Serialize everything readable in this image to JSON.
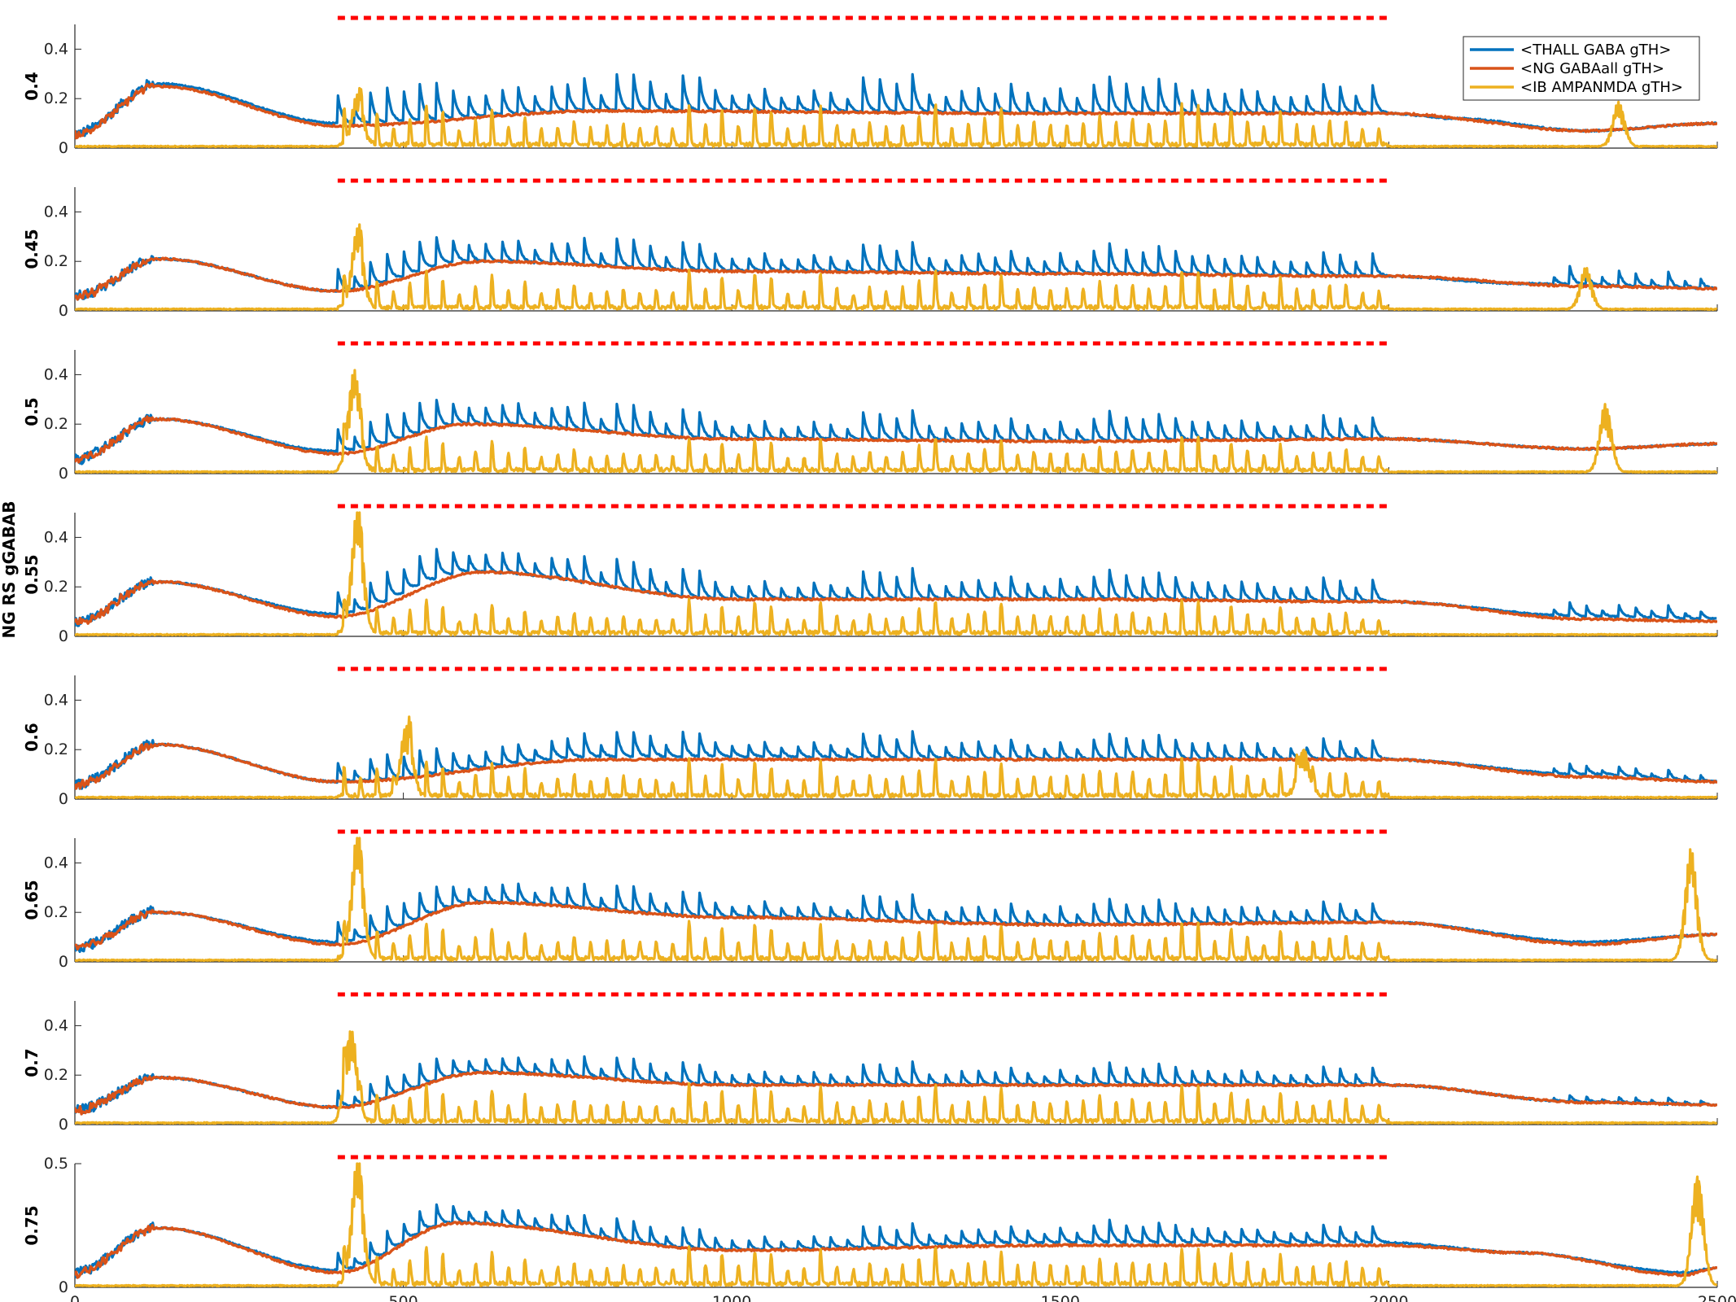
{
  "chart_data": {
    "type": "line",
    "ylabel": "NG RS gGABAB",
    "xlim": [
      0,
      2500
    ],
    "x_ticks": [
      "0",
      "500",
      "1000",
      "1500",
      "2000",
      "2500"
    ],
    "stimulus_marker": {
      "start": 400,
      "end": 2000,
      "color": "#FF0000"
    },
    "legend": {
      "placement": "top-right",
      "entries": [
        "<THALL GABA gTH>",
        "<NG GABAall gTH>",
        "<IB AMPANMDA gTH>"
      ]
    },
    "colors": [
      "#0072BD",
      "#D95319",
      "#EDB120"
    ],
    "panels": [
      {
        "label": "0.4",
        "ylim": [
          0,
          0.5
        ],
        "yticks": [
          "0",
          "0.2",
          "0.4"
        ],
        "series": [
          {
            "name": "<THALL GABA gTH>",
            "base": [
              [
                0,
                0.05
              ],
              [
                130,
                0.26
              ],
              [
                400,
                0.1
              ],
              [
                800,
                0.15
              ],
              [
                1000,
                0.15
              ],
              [
                1500,
                0.14
              ],
              [
                2000,
                0.14
              ],
              [
                2100,
                0.12
              ],
              [
                2300,
                0.07
              ],
              [
                2500,
                0.1
              ]
            ],
            "spike_amp": 0.1,
            "spike_period": 25,
            "after_end_amp": 0.0
          },
          {
            "name": "<NG GABAall gTH>",
            "base": [
              [
                0,
                0.05
              ],
              [
                130,
                0.25
              ],
              [
                400,
                0.09
              ],
              [
                800,
                0.15
              ],
              [
                1500,
                0.14
              ],
              [
                2000,
                0.14
              ],
              [
                2300,
                0.07
              ],
              [
                2500,
                0.1
              ]
            ]
          },
          {
            "name": "<IB AMPANMDA gTH>",
            "burst_peaks": [
              {
                "x": 430,
                "y": 0.2
              },
              {
                "x": 2350,
                "y": 0.18
              }
            ],
            "spike_amp": 0.11,
            "spike_period": 25
          }
        ]
      },
      {
        "label": "0.45",
        "ylim": [
          0,
          0.5
        ],
        "yticks": [
          "0",
          "0.2",
          "0.4"
        ],
        "series": [
          {
            "name": "<THALL GABA gTH>",
            "base": [
              [
                0,
                0.05
              ],
              [
                130,
                0.21
              ],
              [
                400,
                0.08
              ],
              [
                600,
                0.2
              ],
              [
                1000,
                0.16
              ],
              [
                1500,
                0.15
              ],
              [
                2000,
                0.14
              ],
              [
                2200,
                0.11
              ],
              [
                2500,
                0.09
              ]
            ],
            "spike_amp": 0.08,
            "spike_period": 25,
            "after_end_amp": 0.05
          },
          {
            "name": "<NG GABAall gTH>",
            "base": [
              [
                0,
                0.05
              ],
              [
                130,
                0.21
              ],
              [
                400,
                0.08
              ],
              [
                620,
                0.2
              ],
              [
                1000,
                0.16
              ],
              [
                1500,
                0.15
              ],
              [
                2000,
                0.14
              ],
              [
                2300,
                0.1
              ],
              [
                2500,
                0.09
              ]
            ]
          },
          {
            "name": "<IB AMPANMDA gTH>",
            "burst_peaks": [
              {
                "x": 430,
                "y": 0.32
              },
              {
                "x": 2300,
                "y": 0.17
              }
            ],
            "spike_amp": 0.1,
            "spike_period": 25
          }
        ]
      },
      {
        "label": "0.5",
        "ylim": [
          0,
          0.5
        ],
        "yticks": [
          "0",
          "0.2",
          "0.4"
        ],
        "series": [
          {
            "name": "<THALL GABA gTH>",
            "base": [
              [
                0,
                0.05
              ],
              [
                130,
                0.22
              ],
              [
                400,
                0.09
              ],
              [
                600,
                0.2
              ],
              [
                1000,
                0.14
              ],
              [
                1500,
                0.13
              ],
              [
                2000,
                0.14
              ],
              [
                2300,
                0.1
              ],
              [
                2500,
                0.12
              ]
            ],
            "spike_amp": 0.08,
            "spike_period": 25,
            "after_end_amp": 0.0
          },
          {
            "name": "<NG GABAall gTH>",
            "base": [
              [
                0,
                0.05
              ],
              [
                130,
                0.22
              ],
              [
                400,
                0.08
              ],
              [
                600,
                0.2
              ],
              [
                1000,
                0.14
              ],
              [
                1500,
                0.13
              ],
              [
                2000,
                0.14
              ],
              [
                2300,
                0.1
              ],
              [
                2500,
                0.12
              ]
            ]
          },
          {
            "name": "<IB AMPANMDA gTH>",
            "burst_peaks": [
              {
                "x": 425,
                "y": 0.41
              },
              {
                "x": 2330,
                "y": 0.28
              }
            ],
            "spike_amp": 0.09,
            "spike_period": 25
          }
        ]
      },
      {
        "label": "0.55",
        "ylim": [
          0,
          0.5
        ],
        "yticks": [
          "0",
          "0.2",
          "0.4"
        ],
        "series": [
          {
            "name": "<THALL GABA gTH>",
            "base": [
              [
                0,
                0.05
              ],
              [
                130,
                0.22
              ],
              [
                400,
                0.09
              ],
              [
                600,
                0.26
              ],
              [
                1000,
                0.15
              ],
              [
                1500,
                0.15
              ],
              [
                2000,
                0.14
              ],
              [
                2300,
                0.08
              ],
              [
                2500,
                0.07
              ]
            ],
            "spike_amp": 0.08,
            "spike_period": 25,
            "after_end_amp": 0.04
          },
          {
            "name": "<NG GABAall gTH>",
            "base": [
              [
                0,
                0.05
              ],
              [
                130,
                0.22
              ],
              [
                400,
                0.08
              ],
              [
                620,
                0.26
              ],
              [
                1000,
                0.15
              ],
              [
                1500,
                0.15
              ],
              [
                2000,
                0.14
              ],
              [
                2300,
                0.07
              ],
              [
                2500,
                0.06
              ]
            ]
          },
          {
            "name": "<IB AMPANMDA gTH>",
            "burst_peaks": [
              {
                "x": 430,
                "y": 0.5
              }
            ],
            "spike_amp": 0.09,
            "spike_period": 25
          }
        ]
      },
      {
        "label": "0.6",
        "ylim": [
          0,
          0.5
        ],
        "yticks": [
          "0",
          "0.2",
          "0.4"
        ],
        "series": [
          {
            "name": "<THALL GABA gTH>",
            "base": [
              [
                0,
                0.05
              ],
              [
                130,
                0.22
              ],
              [
                400,
                0.07
              ],
              [
                800,
                0.17
              ],
              [
                1000,
                0.17
              ],
              [
                1500,
                0.16
              ],
              [
                2000,
                0.16
              ],
              [
                2300,
                0.1
              ],
              [
                2500,
                0.07
              ]
            ],
            "spike_amp": 0.07,
            "spike_period": 25,
            "after_end_amp": 0.03
          },
          {
            "name": "<NG GABAall gTH>",
            "base": [
              [
                0,
                0.05
              ],
              [
                130,
                0.22
              ],
              [
                400,
                0.07
              ],
              [
                800,
                0.16
              ],
              [
                1000,
                0.16
              ],
              [
                1500,
                0.16
              ],
              [
                2000,
                0.16
              ],
              [
                2300,
                0.09
              ],
              [
                2500,
                0.07
              ]
            ]
          },
          {
            "name": "<IB AMPANMDA gTH>",
            "burst_peaks": [
              {
                "x": 505,
                "y": 0.29
              },
              {
                "x": 1870,
                "y": 0.19
              }
            ],
            "spike_amp": 0.1,
            "spike_period": 25
          }
        ]
      },
      {
        "label": "0.65",
        "ylim": [
          0,
          0.5
        ],
        "yticks": [
          "0",
          "0.2",
          "0.4"
        ],
        "series": [
          {
            "name": "<THALL GABA gTH>",
            "base": [
              [
                0,
                0.05
              ],
              [
                130,
                0.2
              ],
              [
                400,
                0.08
              ],
              [
                620,
                0.24
              ],
              [
                1000,
                0.18
              ],
              [
                1500,
                0.15
              ],
              [
                2000,
                0.16
              ],
              [
                2300,
                0.08
              ],
              [
                2500,
                0.11
              ]
            ],
            "spike_amp": 0.07,
            "spike_period": 25,
            "after_end_amp": 0.0
          },
          {
            "name": "<NG GABAall gTH>",
            "base": [
              [
                0,
                0.05
              ],
              [
                130,
                0.2
              ],
              [
                400,
                0.07
              ],
              [
                620,
                0.24
              ],
              [
                1000,
                0.18
              ],
              [
                1500,
                0.15
              ],
              [
                2000,
                0.16
              ],
              [
                2300,
                0.07
              ],
              [
                2500,
                0.11
              ]
            ]
          },
          {
            "name": "<IB AMPANMDA gTH>",
            "burst_peaks": [
              {
                "x": 430,
                "y": 0.5
              },
              {
                "x": 2460,
                "y": 0.45
              }
            ],
            "spike_amp": 0.1,
            "spike_period": 25
          }
        ]
      },
      {
        "label": "0.7",
        "ylim": [
          0,
          0.5
        ],
        "yticks": [
          "0",
          "0.2",
          "0.4"
        ],
        "series": [
          {
            "name": "<THALL GABA gTH>",
            "base": [
              [
                0,
                0.05
              ],
              [
                130,
                0.19
              ],
              [
                400,
                0.07
              ],
              [
                620,
                0.21
              ],
              [
                1000,
                0.16
              ],
              [
                1500,
                0.16
              ],
              [
                2000,
                0.16
              ],
              [
                2300,
                0.09
              ],
              [
                2500,
                0.08
              ]
            ],
            "spike_amp": 0.06,
            "spike_period": 25,
            "after_end_amp": 0.02
          },
          {
            "name": "<NG GABAall gTH>",
            "base": [
              [
                0,
                0.05
              ],
              [
                130,
                0.19
              ],
              [
                400,
                0.07
              ],
              [
                620,
                0.21
              ],
              [
                1000,
                0.16
              ],
              [
                1500,
                0.16
              ],
              [
                2000,
                0.16
              ],
              [
                2300,
                0.09
              ],
              [
                2500,
                0.08
              ]
            ]
          },
          {
            "name": "<IB AMPANMDA gTH>",
            "burst_peaks": [
              {
                "x": 420,
                "y": 0.38
              }
            ],
            "spike_amp": 0.1,
            "spike_period": 25
          }
        ]
      },
      {
        "label": "0.75",
        "ylim": [
          0,
          0.5
        ],
        "yticks": [
          "0",
          "0.5"
        ],
        "series": [
          {
            "name": "<THALL GABA gTH>",
            "base": [
              [
                0,
                0.05
              ],
              [
                130,
                0.24
              ],
              [
                400,
                0.07
              ],
              [
                580,
                0.26
              ],
              [
                1000,
                0.15
              ],
              [
                1500,
                0.18
              ],
              [
                2000,
                0.18
              ],
              [
                2200,
                0.14
              ],
              [
                2450,
                0.06
              ],
              [
                2500,
                0.08
              ]
            ],
            "spike_amp": 0.06,
            "spike_period": 25,
            "after_end_amp": 0.0
          },
          {
            "name": "<NG GABAall gTH>",
            "base": [
              [
                0,
                0.05
              ],
              [
                130,
                0.24
              ],
              [
                400,
                0.06
              ],
              [
                580,
                0.26
              ],
              [
                1000,
                0.15
              ],
              [
                1500,
                0.17
              ],
              [
                2000,
                0.17
              ],
              [
                2200,
                0.14
              ],
              [
                2450,
                0.05
              ],
              [
                2500,
                0.08
              ]
            ]
          },
          {
            "name": "<IB AMPANMDA gTH>",
            "burst_peaks": [
              {
                "x": 430,
                "y": 0.5
              },
              {
                "x": 2470,
                "y": 0.46
              }
            ],
            "spike_amp": 0.1,
            "spike_period": 25
          }
        ]
      }
    ]
  }
}
